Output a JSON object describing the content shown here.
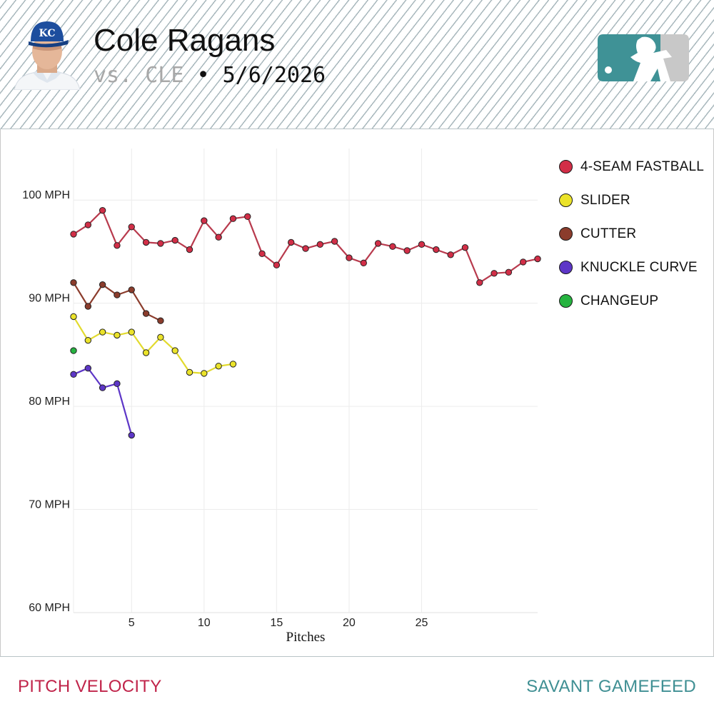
{
  "header": {
    "player_name": "Cole Ragans",
    "opponent": "vs. CLE",
    "separator": "•",
    "date": "5/6/2026",
    "avatar_icon": "player-headshot-icon",
    "logo_icon": "mlb-logo-icon"
  },
  "colors": {
    "header_stripe": "#a9b8bd",
    "footer_left": "#c0244a",
    "footer_right": "#3f8f93",
    "logo_left": "#3f9296",
    "logo_right": "#c8c8c8",
    "cap_blue": "#1d4e9e"
  },
  "chart_data": {
    "type": "line",
    "xlabel": "Pitches",
    "ylabel": "",
    "xlim": [
      1,
      33
    ],
    "ylim": [
      60,
      105
    ],
    "grid": true,
    "legend_position": "right",
    "x_ticks": [
      5,
      10,
      15,
      20,
      25
    ],
    "y_ticks": [
      {
        "value": 60,
        "label": "60 MPH"
      },
      {
        "value": 70,
        "label": "70 MPH"
      },
      {
        "value": 80,
        "label": "80 MPH"
      },
      {
        "value": 90,
        "label": "90 MPH"
      },
      {
        "value": 100,
        "label": "100 MPH"
      }
    ],
    "series": [
      {
        "name": "4-SEAM FASTBALL",
        "color": "#d22e47",
        "line_color": "#b83a4d",
        "x": [
          1,
          2,
          3,
          4,
          5,
          6,
          7,
          8,
          9,
          10,
          11,
          12,
          13,
          14,
          15,
          16,
          17,
          18,
          19,
          20,
          21,
          22,
          23,
          24,
          25,
          26,
          27,
          28,
          29,
          30,
          31,
          32,
          33
        ],
        "y": [
          96.7,
          97.6,
          99.0,
          95.6,
          97.4,
          95.9,
          95.8,
          96.1,
          95.2,
          98.0,
          96.4,
          98.2,
          98.4,
          94.8,
          93.7,
          95.9,
          95.3,
          95.7,
          96.0,
          94.4,
          93.9,
          95.8,
          95.5,
          95.1,
          95.7,
          95.2,
          94.7,
          95.4,
          92.0,
          92.9,
          93.0,
          94.0,
          94.3
        ]
      },
      {
        "name": "SLIDER",
        "color": "#ebe32a",
        "line_color": "#e2da2e",
        "x": [
          1,
          2,
          3,
          4,
          5,
          6,
          7,
          8,
          9,
          10,
          11,
          12
        ],
        "y": [
          88.7,
          86.4,
          87.2,
          86.9,
          87.2,
          85.2,
          86.7,
          85.4,
          83.3,
          83.2,
          83.9,
          84.1
        ]
      },
      {
        "name": "CUTTER",
        "color": "#8b3c2c",
        "line_color": "#8b3c2c",
        "x": [
          1,
          2,
          3,
          4,
          5,
          6,
          7
        ],
        "y": [
          92.0,
          89.7,
          91.8,
          90.8,
          91.3,
          89.0,
          88.3
        ]
      },
      {
        "name": "KNUCKLE CURVE",
        "color": "#5d36c7",
        "line_color": "#5d36c7",
        "x": [
          1,
          2,
          3,
          4,
          5
        ],
        "y": [
          83.1,
          83.7,
          81.8,
          82.2,
          77.2
        ]
      },
      {
        "name": "CHANGEUP",
        "color": "#26b340",
        "line_color": "#26b340",
        "x": [
          1
        ],
        "y": [
          85.4
        ]
      }
    ]
  },
  "footer": {
    "left_label": "PITCH VELOCITY",
    "right_label": "SAVANT GAMEFEED"
  }
}
